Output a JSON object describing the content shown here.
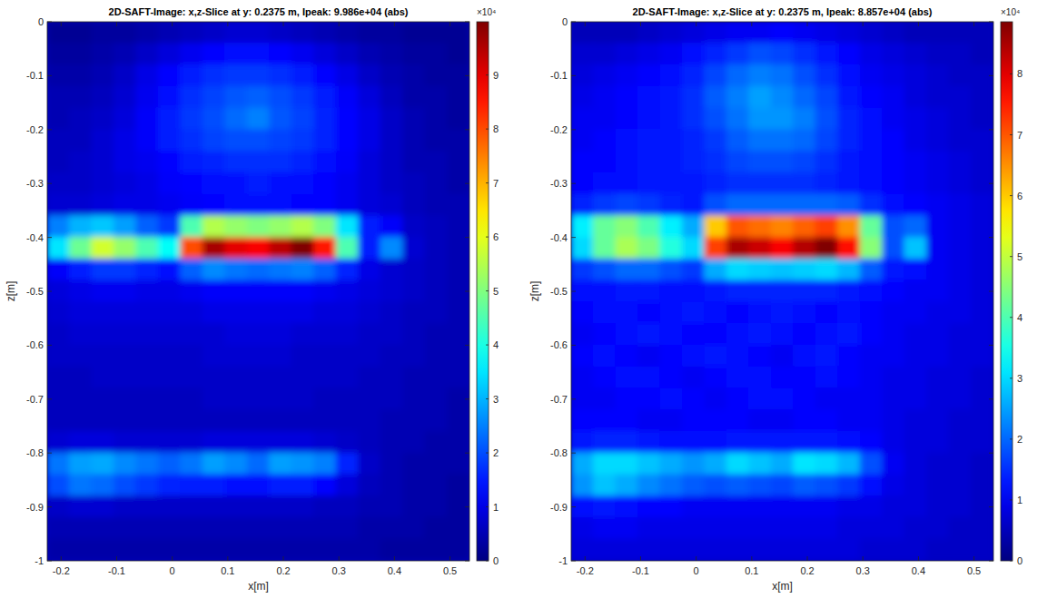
{
  "chart_data": [
    {
      "type": "heatmap",
      "title": "2D-SAFT-Image: x,z-Slice at y: 0.2375 m, Ipeak: 9.986e+04 (abs)",
      "x_label": "x[m]",
      "y_label": "z[m]",
      "xlim": [
        -0.225,
        0.535
      ],
      "ylim": [
        -1,
        0
      ],
      "xticks": [
        -0.2,
        -0.1,
        0,
        0.1,
        0.2,
        0.3,
        0.4,
        0.5
      ],
      "yticks": [
        0,
        -0.1,
        -0.2,
        -0.3,
        -0.4,
        -0.5,
        -0.6,
        -0.7,
        -0.8,
        -0.9,
        -1
      ],
      "x": [
        -0.205,
        -0.165,
        -0.125,
        -0.085,
        -0.045,
        -0.005,
        0.035,
        0.075,
        0.115,
        0.155,
        0.195,
        0.235,
        0.275,
        0.315,
        0.355,
        0.395,
        0.435,
        0.475,
        0.515
      ],
      "y": [
        -0.02,
        -0.06,
        -0.1,
        -0.14,
        -0.18,
        -0.22,
        -0.26,
        -0.3,
        -0.34,
        -0.38,
        -0.42,
        -0.46,
        -0.5,
        -0.54,
        -0.58,
        -0.62,
        -0.66,
        -0.7,
        -0.74,
        -0.78,
        -0.82,
        -0.86,
        -0.9,
        -0.94,
        -0.98
      ],
      "values": [
        [
          0.2,
          0.2,
          0.3,
          0.3,
          0.4,
          0.5,
          0.6,
          0.7,
          0.8,
          0.8,
          0.7,
          0.6,
          0.5,
          0.4,
          0.3,
          0.3,
          0.2,
          0.2,
          0.2
        ],
        [
          0.3,
          0.3,
          0.4,
          0.5,
          0.7,
          0.9,
          1.1,
          1.3,
          1.4,
          1.4,
          1.3,
          1.1,
          0.9,
          0.7,
          0.5,
          0.4,
          0.3,
          0.3,
          0.2
        ],
        [
          0.4,
          0.4,
          0.5,
          0.7,
          1.0,
          1.3,
          1.5,
          1.7,
          1.8,
          1.8,
          1.7,
          1.5,
          1.3,
          1.0,
          0.7,
          0.5,
          0.4,
          0.3,
          0.3
        ],
        [
          0.5,
          0.5,
          0.6,
          0.8,
          1.1,
          1.4,
          1.7,
          1.9,
          2.1,
          2.2,
          2.0,
          1.8,
          1.5,
          1.2,
          0.9,
          0.6,
          0.4,
          0.4,
          0.3
        ],
        [
          0.5,
          0.6,
          0.7,
          0.9,
          1.2,
          1.5,
          1.8,
          2.0,
          2.3,
          2.5,
          2.1,
          1.9,
          1.6,
          1.3,
          1.0,
          0.7,
          0.5,
          0.4,
          0.3
        ],
        [
          0.6,
          0.6,
          0.8,
          1.0,
          1.2,
          1.5,
          1.7,
          1.9,
          2.0,
          2.0,
          1.9,
          1.8,
          1.6,
          1.3,
          1.0,
          0.7,
          0.5,
          0.4,
          0.4
        ],
        [
          0.6,
          0.7,
          0.8,
          1.0,
          1.1,
          1.3,
          1.5,
          1.6,
          1.7,
          1.7,
          1.7,
          1.6,
          1.4,
          1.2,
          0.9,
          0.7,
          0.5,
          0.5,
          0.4
        ],
        [
          0.7,
          0.7,
          0.8,
          0.9,
          1.0,
          1.2,
          1.3,
          1.4,
          1.4,
          1.5,
          1.4,
          1.4,
          1.3,
          1.1,
          0.9,
          0.7,
          0.6,
          0.5,
          0.4
        ],
        [
          0.8,
          0.8,
          0.9,
          1.0,
          1.0,
          1.1,
          1.2,
          1.3,
          1.4,
          1.4,
          1.4,
          1.3,
          1.3,
          1.1,
          0.9,
          0.8,
          0.6,
          0.5,
          0.5
        ],
        [
          2.5,
          3.0,
          3.2,
          2.8,
          2.2,
          1.8,
          4.5,
          5.5,
          5.2,
          5.0,
          5.2,
          5.5,
          5.0,
          3.5,
          1.5,
          1.2,
          0.7,
          0.6,
          0.5
        ],
        [
          3.5,
          4.8,
          5.8,
          5.2,
          4.5,
          3.8,
          8.0,
          9.6,
          9.0,
          8.8,
          9.4,
          9.986,
          8.5,
          4.5,
          1.5,
          2.6,
          0.8,
          0.6,
          0.5
        ],
        [
          1.2,
          1.5,
          1.8,
          1.8,
          1.6,
          1.4,
          2.2,
          2.6,
          2.4,
          2.3,
          2.4,
          2.5,
          2.2,
          1.6,
          1.0,
          0.8,
          0.7,
          0.6,
          0.5
        ],
        [
          0.9,
          1.0,
          1.1,
          1.1,
          1.0,
          1.0,
          1.1,
          1.2,
          1.2,
          1.2,
          1.2,
          1.2,
          1.1,
          1.0,
          0.9,
          0.8,
          0.7,
          0.6,
          0.5
        ],
        [
          0.8,
          0.9,
          0.9,
          0.9,
          0.9,
          0.9,
          0.9,
          1.0,
          1.0,
          1.0,
          1.0,
          1.0,
          0.9,
          0.9,
          0.8,
          0.7,
          0.6,
          0.6,
          0.5
        ],
        [
          0.7,
          0.8,
          0.8,
          0.8,
          0.8,
          0.8,
          0.8,
          0.8,
          0.9,
          0.9,
          0.9,
          0.8,
          0.8,
          0.8,
          0.7,
          0.7,
          0.6,
          0.5,
          0.5
        ],
        [
          0.7,
          0.7,
          0.7,
          0.7,
          0.7,
          0.7,
          0.7,
          0.8,
          0.8,
          0.8,
          0.8,
          0.7,
          0.7,
          0.7,
          0.7,
          0.6,
          0.6,
          0.5,
          0.5
        ],
        [
          0.6,
          0.6,
          0.7,
          0.7,
          0.7,
          0.7,
          0.7,
          0.7,
          0.7,
          0.7,
          0.7,
          0.7,
          0.7,
          0.7,
          0.6,
          0.6,
          0.5,
          0.5,
          0.5
        ],
        [
          0.6,
          0.6,
          0.6,
          0.6,
          0.6,
          0.6,
          0.6,
          0.7,
          0.7,
          0.7,
          0.7,
          0.7,
          0.6,
          0.6,
          0.6,
          0.6,
          0.5,
          0.5,
          0.4
        ],
        [
          0.6,
          0.6,
          0.6,
          0.6,
          0.6,
          0.6,
          0.6,
          0.6,
          0.6,
          0.6,
          0.6,
          0.6,
          0.6,
          0.6,
          0.6,
          0.5,
          0.5,
          0.5,
          0.4
        ],
        [
          0.8,
          0.9,
          0.9,
          0.8,
          0.8,
          0.8,
          0.8,
          0.9,
          0.9,
          0.9,
          0.9,
          0.9,
          0.8,
          0.7,
          0.6,
          0.5,
          0.5,
          0.4,
          0.4
        ],
        [
          2.4,
          2.8,
          2.9,
          2.6,
          2.4,
          2.2,
          2.4,
          2.8,
          2.6,
          2.3,
          2.8,
          2.7,
          2.5,
          1.6,
          0.7,
          0.5,
          0.4,
          0.4,
          0.4
        ],
        [
          2.0,
          2.4,
          2.3,
          2.0,
          1.8,
          1.6,
          1.5,
          1.5,
          1.4,
          1.4,
          1.5,
          1.5,
          1.3,
          0.9,
          0.6,
          0.5,
          0.4,
          0.4,
          0.3
        ],
        [
          0.7,
          0.8,
          0.8,
          0.7,
          0.7,
          0.7,
          0.7,
          0.7,
          0.7,
          0.7,
          0.7,
          0.7,
          0.6,
          0.6,
          0.5,
          0.5,
          0.4,
          0.4,
          0.3
        ],
        [
          0.5,
          0.5,
          0.5,
          0.5,
          0.5,
          0.5,
          0.5,
          0.5,
          0.5,
          0.5,
          0.5,
          0.5,
          0.5,
          0.5,
          0.4,
          0.4,
          0.4,
          0.3,
          0.3
        ],
        [
          0.4,
          0.4,
          0.4,
          0.4,
          0.4,
          0.4,
          0.4,
          0.4,
          0.4,
          0.4,
          0.4,
          0.4,
          0.4,
          0.4,
          0.4,
          0.3,
          0.3,
          0.3,
          0.3
        ]
      ],
      "colorbar": {
        "range": [
          0,
          9.986
        ],
        "ticks": [
          0,
          1,
          2,
          3,
          4,
          5,
          6,
          7,
          8,
          9
        ],
        "label": "×10⁴"
      }
    },
    {
      "type": "heatmap",
      "title": "2D-SAFT-Image: x,z-Slice at y: 0.2375 m, Ipeak: 8.857e+04 (abs)",
      "x_label": "x[m]",
      "y_label": "z[m]",
      "xlim": [
        -0.225,
        0.535
      ],
      "ylim": [
        -1,
        0
      ],
      "xticks": [
        -0.2,
        -0.1,
        0,
        0.1,
        0.2,
        0.3,
        0.4,
        0.5
      ],
      "yticks": [
        0,
        -0.1,
        -0.2,
        -0.3,
        -0.4,
        -0.5,
        -0.6,
        -0.7,
        -0.8,
        -0.9,
        -1
      ],
      "x": [
        -0.205,
        -0.165,
        -0.125,
        -0.085,
        -0.045,
        -0.005,
        0.035,
        0.075,
        0.115,
        0.155,
        0.195,
        0.235,
        0.275,
        0.315,
        0.355,
        0.395,
        0.435,
        0.475,
        0.515
      ],
      "y": [
        -0.02,
        -0.06,
        -0.1,
        -0.14,
        -0.18,
        -0.22,
        -0.26,
        -0.3,
        -0.34,
        -0.38,
        -0.42,
        -0.46,
        -0.5,
        -0.54,
        -0.58,
        -0.62,
        -0.66,
        -0.7,
        -0.74,
        -0.78,
        -0.82,
        -0.86,
        -0.9,
        -0.94,
        -0.98
      ],
      "values": [
        [
          0.5,
          0.5,
          0.5,
          0.6,
          0.7,
          0.8,
          0.9,
          1.0,
          1.0,
          1.1,
          1.0,
          0.9,
          0.8,
          0.7,
          0.6,
          0.5,
          0.5,
          0.5,
          0.5
        ],
        [
          0.7,
          0.7,
          0.8,
          0.9,
          1.0,
          1.2,
          1.4,
          1.6,
          1.8,
          1.7,
          1.5,
          1.3,
          1.1,
          0.9,
          0.8,
          0.7,
          0.6,
          0.6,
          0.5
        ],
        [
          0.8,
          0.9,
          1.0,
          1.1,
          1.2,
          1.4,
          1.7,
          2.0,
          2.2,
          2.1,
          1.8,
          1.5,
          1.2,
          1.0,
          0.9,
          0.8,
          0.7,
          0.6,
          0.6
        ],
        [
          0.9,
          1.0,
          1.1,
          1.2,
          1.3,
          1.5,
          1.9,
          2.2,
          2.5,
          2.3,
          2.0,
          1.7,
          1.3,
          1.1,
          1.0,
          0.8,
          0.7,
          0.7,
          0.6
        ],
        [
          1.0,
          1.0,
          1.1,
          1.2,
          1.3,
          1.5,
          1.8,
          2.1,
          2.4,
          2.4,
          2.2,
          1.8,
          1.4,
          1.2,
          1.0,
          0.9,
          0.8,
          0.7,
          0.6
        ],
        [
          1.0,
          1.1,
          1.2,
          1.3,
          1.3,
          1.4,
          1.6,
          1.9,
          2.1,
          2.1,
          2.0,
          1.7,
          1.4,
          1.2,
          1.1,
          0.9,
          0.8,
          0.7,
          0.7
        ],
        [
          1.1,
          1.1,
          1.2,
          1.3,
          1.3,
          1.4,
          1.5,
          1.7,
          1.8,
          1.8,
          1.7,
          1.5,
          1.3,
          1.2,
          1.1,
          1.0,
          0.9,
          0.8,
          0.7
        ],
        [
          1.1,
          1.2,
          1.2,
          1.3,
          1.3,
          1.3,
          1.4,
          1.5,
          1.5,
          1.5,
          1.5,
          1.4,
          1.3,
          1.2,
          1.1,
          1.0,
          0.9,
          0.8,
          0.7
        ],
        [
          1.4,
          1.6,
          1.7,
          1.6,
          1.4,
          1.3,
          1.8,
          2.0,
          2.0,
          2.0,
          2.0,
          2.0,
          1.9,
          1.5,
          1.2,
          1.1,
          1.0,
          0.9,
          0.8
        ],
        [
          3.2,
          4.2,
          4.5,
          4.0,
          3.2,
          2.6,
          6.0,
          7.0,
          6.8,
          6.6,
          6.9,
          7.2,
          6.5,
          4.2,
          1.8,
          2.0,
          1.0,
          0.9,
          0.8
        ],
        [
          3.0,
          4.2,
          4.8,
          4.4,
          3.6,
          3.0,
          7.2,
          8.5,
          8.2,
          7.8,
          8.4,
          8.857,
          7.6,
          4.5,
          1.8,
          2.8,
          1.0,
          0.9,
          0.8
        ],
        [
          1.6,
          1.8,
          2.0,
          2.0,
          1.8,
          1.6,
          2.6,
          3.0,
          2.9,
          2.8,
          2.9,
          3.0,
          2.7,
          1.9,
          1.3,
          1.2,
          1.0,
          0.9,
          0.8
        ],
        [
          1.2,
          1.2,
          1.3,
          1.3,
          1.2,
          1.2,
          1.3,
          1.4,
          1.4,
          1.4,
          1.4,
          1.4,
          1.3,
          1.2,
          1.1,
          1.0,
          1.0,
          0.9,
          0.8
        ],
        [
          1.1,
          1.2,
          1.2,
          1.1,
          1.2,
          1.3,
          1.2,
          1.1,
          1.2,
          1.3,
          1.2,
          1.1,
          1.2,
          1.1,
          1.0,
          1.0,
          0.9,
          0.9,
          0.8
        ],
        [
          1.0,
          1.1,
          1.2,
          1.3,
          1.2,
          1.1,
          1.1,
          1.2,
          1.3,
          1.2,
          1.1,
          1.2,
          1.3,
          1.1,
          1.0,
          0.9,
          0.9,
          0.8,
          0.8
        ],
        [
          1.1,
          1.2,
          1.1,
          1.0,
          1.1,
          1.2,
          1.3,
          1.2,
          1.1,
          1.0,
          1.2,
          1.3,
          1.1,
          1.0,
          1.0,
          0.9,
          0.9,
          0.8,
          0.8
        ],
        [
          1.0,
          1.1,
          1.2,
          1.2,
          1.1,
          1.0,
          1.1,
          1.2,
          1.2,
          1.1,
          1.1,
          1.2,
          1.1,
          1.0,
          0.9,
          0.9,
          0.8,
          0.8,
          0.7
        ],
        [
          1.0,
          1.0,
          1.1,
          1.1,
          1.2,
          1.1,
          1.0,
          1.1,
          1.2,
          1.2,
          1.1,
          1.0,
          1.0,
          1.0,
          0.9,
          0.9,
          0.8,
          0.8,
          0.7
        ],
        [
          1.1,
          1.1,
          1.1,
          1.0,
          1.0,
          1.1,
          1.1,
          1.1,
          1.0,
          1.0,
          1.1,
          1.1,
          1.0,
          1.0,
          0.9,
          0.8,
          0.8,
          0.7,
          0.7
        ],
        [
          1.3,
          1.4,
          1.4,
          1.3,
          1.2,
          1.2,
          1.2,
          1.3,
          1.3,
          1.3,
          1.3,
          1.3,
          1.2,
          1.1,
          0.9,
          0.8,
          0.8,
          0.7,
          0.7
        ],
        [
          2.6,
          3.0,
          3.0,
          2.8,
          2.6,
          2.4,
          2.6,
          3.0,
          2.8,
          2.6,
          3.1,
          3.0,
          2.7,
          1.8,
          1.0,
          0.8,
          0.7,
          0.7,
          0.6
        ],
        [
          2.4,
          2.8,
          2.6,
          2.3,
          2.1,
          1.9,
          1.8,
          1.9,
          1.8,
          1.7,
          1.9,
          1.8,
          1.6,
          1.2,
          0.9,
          0.8,
          0.7,
          0.7,
          0.6
        ],
        [
          1.2,
          1.3,
          1.2,
          1.1,
          1.1,
          1.0,
          1.0,
          1.0,
          1.0,
          1.0,
          1.0,
          1.0,
          0.9,
          0.9,
          0.8,
          0.8,
          0.7,
          0.7,
          0.6
        ],
        [
          0.9,
          1.0,
          1.0,
          0.9,
          0.9,
          0.9,
          0.9,
          0.9,
          0.9,
          0.9,
          0.9,
          0.9,
          0.8,
          0.8,
          0.8,
          0.7,
          0.7,
          0.6,
          0.6
        ],
        [
          0.8,
          0.8,
          0.8,
          0.8,
          0.8,
          0.8,
          0.8,
          0.8,
          0.8,
          0.8,
          0.8,
          0.8,
          0.8,
          0.7,
          0.7,
          0.7,
          0.6,
          0.6,
          0.6
        ]
      ],
      "colorbar": {
        "range": [
          0,
          8.857
        ],
        "ticks": [
          0,
          1,
          2,
          3,
          4,
          5,
          6,
          7,
          8
        ],
        "label": "×10⁴"
      }
    }
  ]
}
